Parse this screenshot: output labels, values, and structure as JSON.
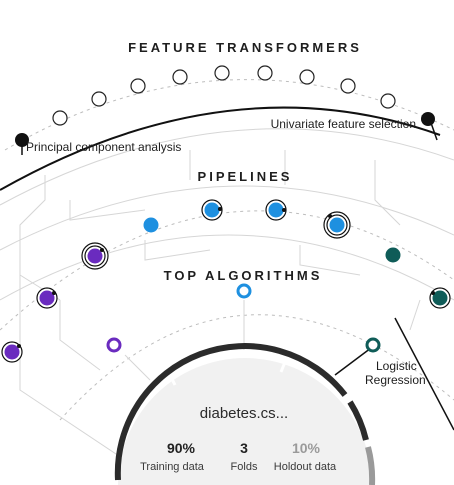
{
  "rings": {
    "feature_transformers": "FEATURE TRANSFORMERS",
    "pipelines": "PIPELINES",
    "top_algorithms": "TOP ALGORITHMS"
  },
  "labels": {
    "principal_component_analysis": "Principal component analysis",
    "univariate_feature_selection": "Univariate feature selection",
    "logistic_line1": "Logistic",
    "logistic_line2": "Regression"
  },
  "dataset": {
    "name": "diabetes.cs...",
    "training_pct": "90%",
    "training_label": "Training data",
    "folds": "3",
    "folds_label": "Folds",
    "holdout_pct": "10%",
    "holdout_label": "Holdout data"
  },
  "colors": {
    "dark": "#111111",
    "gray": "#9a9a9a",
    "line": "#cfcfcf",
    "blue": "#1e90e0",
    "purple": "#6a2bbf",
    "teal": "#0f5c58"
  },
  "icons": {
    "transformer_node": "hollow-circle-icon",
    "pipeline_node": "filled-circle-icon"
  }
}
